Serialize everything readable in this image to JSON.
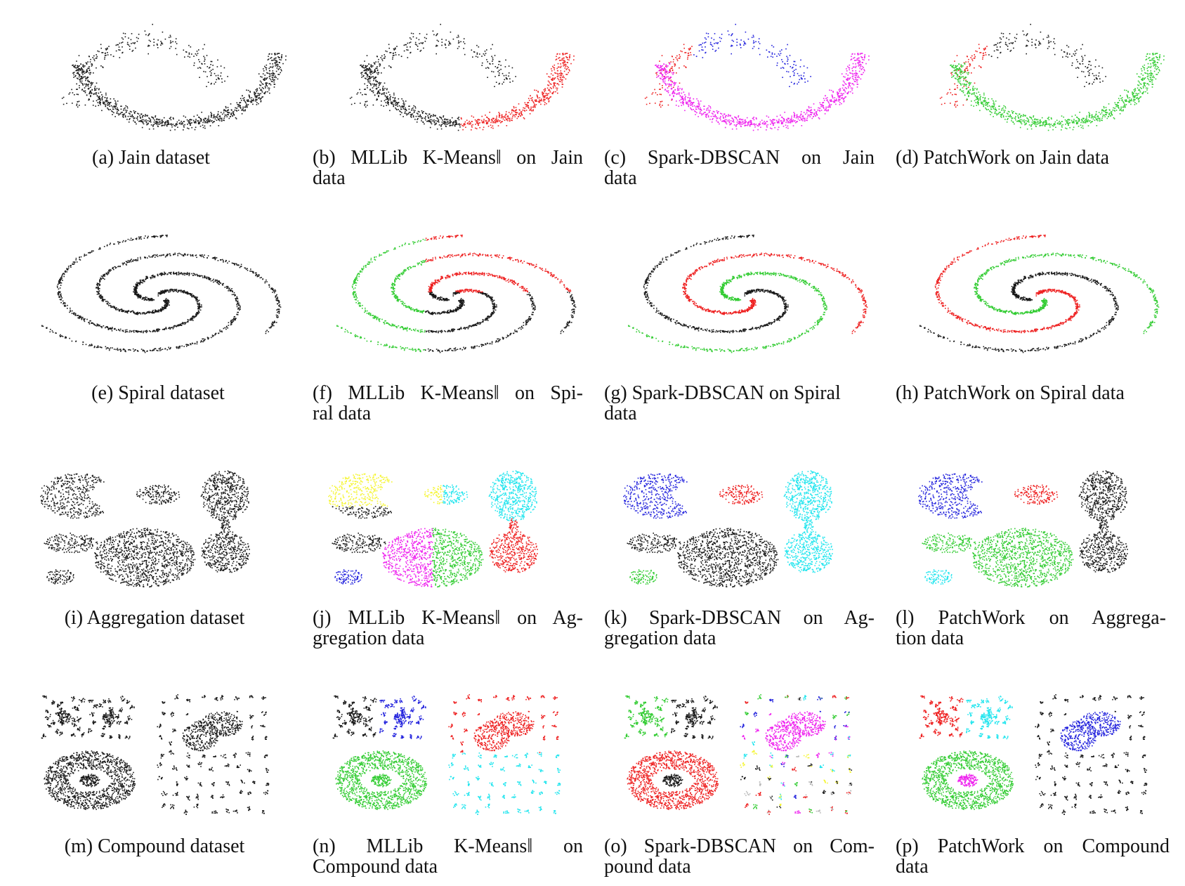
{
  "colors": {
    "black": "#1a1a1a",
    "red": "#ee2222",
    "green": "#33cc33",
    "blue": "#2222dd",
    "magenta": "#ee22ee",
    "cyan": "#22e5ee",
    "yellow": "#f5f533",
    "gray": "#bbbbbb"
  },
  "figures": [
    {
      "id": "a",
      "dataset": "jain",
      "scheme": "jain-orig",
      "caption_lines": [
        "(a) Jain dataset"
      ]
    },
    {
      "id": "b",
      "dataset": "jain",
      "scheme": "jain-kmeans",
      "caption_lines": [
        "(b) MLLib K-Means‖ on Jain",
        "data"
      ]
    },
    {
      "id": "c",
      "dataset": "jain",
      "scheme": "jain-dbscan",
      "caption_lines": [
        "(c) Spark-DBSCAN on Jain",
        "data"
      ]
    },
    {
      "id": "d",
      "dataset": "jain",
      "scheme": "jain-patchwork",
      "caption_lines": [
        "(d) PatchWork on Jain data"
      ]
    },
    {
      "id": "e",
      "dataset": "spiral",
      "scheme": "spiral-orig",
      "caption_lines": [
        "(e) Spiral dataset"
      ]
    },
    {
      "id": "f",
      "dataset": "spiral",
      "scheme": "spiral-kmeans",
      "caption_lines": [
        "(f) MLLib K-Means‖ on Spi-",
        "ral data"
      ]
    },
    {
      "id": "g",
      "dataset": "spiral",
      "scheme": "spiral-dbscan",
      "caption_lines": [
        "(g) Spark-DBSCAN on Spiral",
        "data"
      ]
    },
    {
      "id": "h",
      "dataset": "spiral",
      "scheme": "spiral-patchwork",
      "caption_lines": [
        "(h) PatchWork on Spiral data"
      ]
    },
    {
      "id": "i",
      "dataset": "aggregation",
      "scheme": "agg-orig",
      "caption_lines": [
        "(i) Aggregation dataset"
      ]
    },
    {
      "id": "j",
      "dataset": "aggregation",
      "scheme": "agg-kmeans",
      "caption_lines": [
        "(j) MLLib K-Means‖ on Ag-",
        "gregation data"
      ]
    },
    {
      "id": "k",
      "dataset": "aggregation",
      "scheme": "agg-dbscan",
      "caption_lines": [
        "(k) Spark-DBSCAN on Ag-",
        "gregation data"
      ]
    },
    {
      "id": "l",
      "dataset": "aggregation",
      "scheme": "agg-patchwork",
      "caption_lines": [
        "(l) PatchWork on Aggrega-",
        "tion data"
      ]
    },
    {
      "id": "m",
      "dataset": "compound",
      "scheme": "comp-orig",
      "caption_lines": [
        "(m) Compound dataset"
      ]
    },
    {
      "id": "n",
      "dataset": "compound",
      "scheme": "comp-kmeans",
      "caption_lines": [
        "(n) MLLib K-Means‖ on",
        "Compound data"
      ]
    },
    {
      "id": "o",
      "dataset": "compound",
      "scheme": "comp-dbscan",
      "caption_lines": [
        "(o) Spark-DBSCAN on Com-",
        "pound data"
      ]
    },
    {
      "id": "p",
      "dataset": "compound",
      "scheme": "comp-patchwork",
      "caption_lines": [
        "(p) PatchWork on Compound",
        "data"
      ]
    }
  ]
}
